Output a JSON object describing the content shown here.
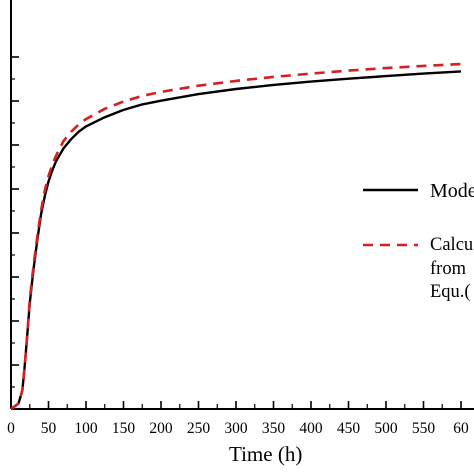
{
  "chart_data": {
    "type": "line",
    "xlabel": "Time (h)",
    "x_ticks": [
      "0",
      "50",
      "100",
      "150",
      "200",
      "250",
      "300",
      "350",
      "400",
      "450",
      "500",
      "550",
      "60"
    ],
    "xlim": [
      0,
      604
    ],
    "grid": false,
    "legend_position": "right",
    "series": [
      {
        "name": "Mode",
        "style": "solid",
        "color": "#000000",
        "x": [
          0,
          10,
          15,
          18,
          22,
          25,
          30,
          35,
          40,
          45,
          50,
          55,
          60,
          70,
          80,
          90,
          100,
          125,
          150,
          175,
          200,
          250,
          300,
          350,
          400,
          450,
          500,
          550,
          600
        ],
        "y": [
          0.0,
          0.015,
          0.05,
          0.11,
          0.21,
          0.29,
          0.38,
          0.46,
          0.53,
          0.58,
          0.62,
          0.65,
          0.675,
          0.71,
          0.735,
          0.755,
          0.77,
          0.795,
          0.815,
          0.83,
          0.84,
          0.858,
          0.872,
          0.883,
          0.892,
          0.9,
          0.907,
          0.914,
          0.92
        ]
      },
      {
        "name": "Calcu from Equ.(",
        "legend_lines": [
          "Calcu",
          "from",
          "Equ.("
        ],
        "style": "dashed",
        "color": "#d42020",
        "x": [
          0,
          10,
          15,
          18,
          22,
          25,
          30,
          35,
          40,
          45,
          50,
          55,
          60,
          70,
          80,
          90,
          100,
          125,
          150,
          175,
          200,
          250,
          300,
          350,
          400,
          450,
          500,
          550,
          600
        ],
        "y": [
          0.0,
          0.015,
          0.05,
          0.11,
          0.21,
          0.3,
          0.39,
          0.47,
          0.54,
          0.595,
          0.635,
          0.665,
          0.69,
          0.73,
          0.755,
          0.775,
          0.79,
          0.818,
          0.838,
          0.853,
          0.864,
          0.881,
          0.894,
          0.905,
          0.914,
          0.922,
          0.929,
          0.935,
          0.94
        ]
      }
    ]
  }
}
